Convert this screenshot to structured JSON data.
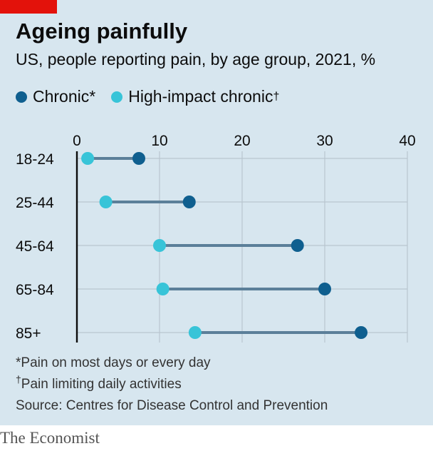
{
  "header": {
    "title": "Ageing painfully",
    "subtitle": "US, people reporting pain, by age group, 2021, %"
  },
  "colors": {
    "chronic": "#0f5f8f",
    "high_impact": "#38c4d8",
    "connector": "#5b7f99",
    "grid": "#b9c6cf",
    "axis": "#0c0c0c",
    "tag": "#e3120b"
  },
  "chart_data": {
    "type": "dot-range",
    "categories": [
      "18-24",
      "25-44",
      "45-64",
      "65-84",
      "85+"
    ],
    "series": [
      {
        "name": "Chronic*",
        "values": [
          7.5,
          13.6,
          26.7,
          30.0,
          34.4
        ]
      },
      {
        "name": "High-impact chronic",
        "values": [
          1.3,
          3.5,
          10.0,
          10.4,
          14.3
        ]
      }
    ],
    "xlim": [
      0,
      40
    ],
    "xticks": [
      "0",
      "10",
      "20",
      "30",
      "40"
    ],
    "tick_values": [
      0,
      10,
      20,
      30,
      40
    ],
    "grid": true,
    "legend_position": "top-left"
  },
  "legend": {
    "chronic_label": "Chronic*",
    "high_impact_label": "High-impact chronic",
    "high_impact_mark": "†"
  },
  "notes": {
    "note1": "*Pain on most days or every day",
    "note2_mark": "†",
    "note2": "Pain limiting daily activities",
    "source": "Source: Centres for Disease Control and Prevention"
  },
  "brand": "The Economist"
}
